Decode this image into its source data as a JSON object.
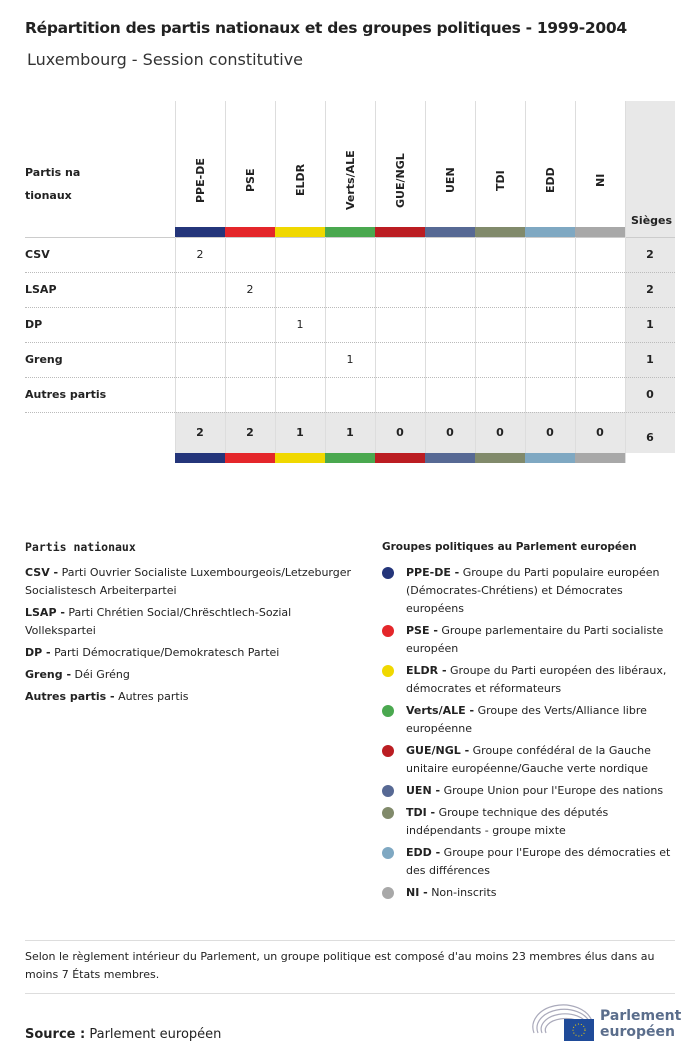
{
  "title": "Répartition des partis nationaux et des groupes politiques - 1999-2004",
  "subtitle": "Luxembourg - Session constitutive",
  "chart_data": {
    "type": "table",
    "row_header": "Partis nationaux",
    "total_header": "Sièges",
    "columns": [
      {
        "label": "PPE-DE",
        "color": "#24357a"
      },
      {
        "label": "PSE",
        "color": "#e4262a"
      },
      {
        "label": "ELDR",
        "color": "#f0d800"
      },
      {
        "label": "Verts/ALE",
        "color": "#4aa84f"
      },
      {
        "label": "GUE/NGL",
        "color": "#bb1d22"
      },
      {
        "label": "UEN",
        "color": "#576994"
      },
      {
        "label": "TDI",
        "color": "#818a6b"
      },
      {
        "label": "EDD",
        "color": "#7fa8c2"
      },
      {
        "label": "NI",
        "color": "#a8a8a8"
      }
    ],
    "rows": [
      {
        "label": "CSV",
        "values": [
          2,
          null,
          null,
          null,
          null,
          null,
          null,
          null,
          null
        ],
        "total": 2
      },
      {
        "label": "LSAP",
        "values": [
          null,
          2,
          null,
          null,
          null,
          null,
          null,
          null,
          null
        ],
        "total": 2
      },
      {
        "label": "DP",
        "values": [
          null,
          null,
          1,
          null,
          null,
          null,
          null,
          null,
          null
        ],
        "total": 1
      },
      {
        "label": "Greng",
        "values": [
          null,
          null,
          null,
          1,
          null,
          null,
          null,
          null,
          null
        ],
        "total": 1
      },
      {
        "label": "Autres partis",
        "values": [
          null,
          null,
          null,
          null,
          null,
          null,
          null,
          null,
          null
        ],
        "total": 0
      }
    ],
    "column_totals": [
      2,
      2,
      1,
      1,
      0,
      0,
      0,
      0,
      0
    ],
    "grand_total": 6
  },
  "legend_parties": {
    "title": "Partis nationaux",
    "items": [
      {
        "abbr": "CSV -",
        "name": "Parti Ouvrier Socialiste Luxembourgeois/Letzeburger Socialistesch Arbeiterpartei"
      },
      {
        "abbr": "LSAP -",
        "name": "Parti Chrétien Social/Chrëschtlech-Sozial Vollekspartei"
      },
      {
        "abbr": "DP -",
        "name": "Parti Démocratique/Demokratesch Partei"
      },
      {
        "abbr": "Greng -",
        "name": "Déi Gréng"
      },
      {
        "abbr": "Autres partis -",
        "name": "Autres partis"
      }
    ]
  },
  "legend_groups": {
    "title": "Groupes politiques au Parlement européen",
    "items": [
      {
        "abbr": "PPE-DE -",
        "name": "Groupe du Parti populaire européen (Démocrates-Chrétiens) et Démocrates européens",
        "color": "#24357a"
      },
      {
        "abbr": "PSE -",
        "name": "Groupe parlementaire du Parti socialiste européen",
        "color": "#e4262a"
      },
      {
        "abbr": "ELDR -",
        "name": "Groupe du Parti européen des libéraux, démocrates et réformateurs",
        "color": "#f0d800"
      },
      {
        "abbr": "Verts/ALE -",
        "name": "Groupe des Verts/Alliance libre européenne",
        "color": "#4aa84f"
      },
      {
        "abbr": "GUE/NGL -",
        "name": "Groupe confédéral de la Gauche unitaire européenne/Gauche verte nordique",
        "color": "#bb1d22"
      },
      {
        "abbr": "UEN -",
        "name": "Groupe Union pour l'Europe des nations",
        "color": "#576994"
      },
      {
        "abbr": "TDI -",
        "name": "Groupe technique des députés indépendants - groupe mixte",
        "color": "#818a6b"
      },
      {
        "abbr": "EDD -",
        "name": "Groupe pour l'Europe des démocraties et des différences",
        "color": "#7fa8c2"
      },
      {
        "abbr": "NI -",
        "name": "Non-inscrits",
        "color": "#a8a8a8"
      }
    ]
  },
  "note": "Selon le règlement intérieur du Parlement, un groupe politique est composé d'au moins 23 membres élus dans au moins 7 États membres.",
  "source_label": "Source :",
  "source_value": "Parlement européen",
  "logo_text": "Parlement européen"
}
